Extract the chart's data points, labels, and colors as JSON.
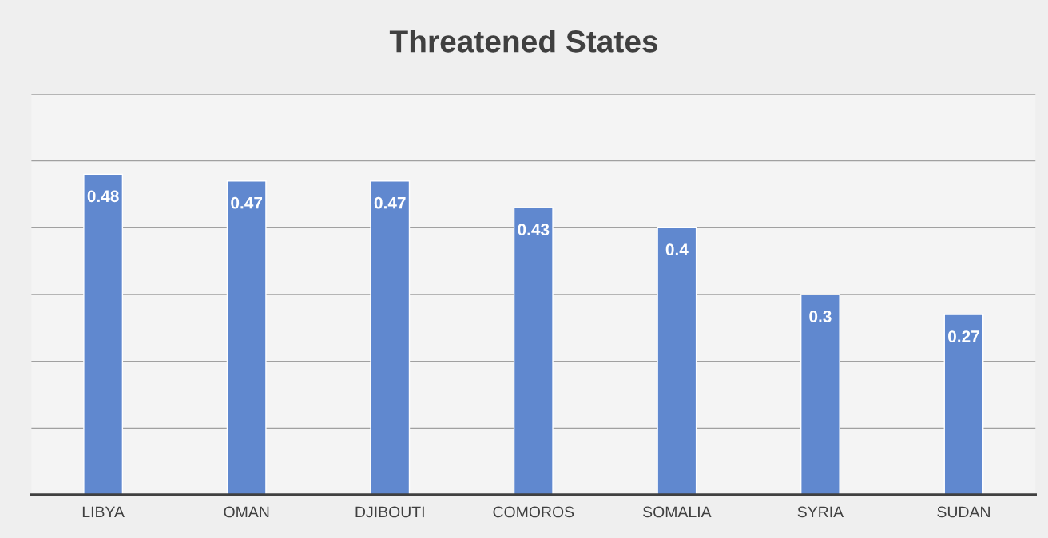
{
  "chart_data": {
    "type": "bar",
    "title": "Threatened States",
    "categories": [
      "LIBYA",
      "OMAN",
      "DJIBOUTI",
      "COMOROS",
      "SOMALIA",
      "SYRIA",
      "SUDAN"
    ],
    "values": [
      0.48,
      0.47,
      0.47,
      0.43,
      0.4,
      0.3,
      0.27
    ],
    "color": "#6088cf",
    "ylim": [
      0,
      0.6
    ],
    "yticks": [
      {
        "value": 0,
        "label": null
      },
      {
        "value": 0.1,
        "label": null
      },
      {
        "value": 0.2,
        "label": null
      },
      {
        "value": 0.3,
        "label": null
      },
      {
        "value": 0.4,
        "label": null
      },
      {
        "value": 0.5,
        "label": null
      },
      {
        "value": 0.6,
        "label": null
      }
    ],
    "tick_labels": "x",
    "grid": "y",
    "data_labels": true
  }
}
